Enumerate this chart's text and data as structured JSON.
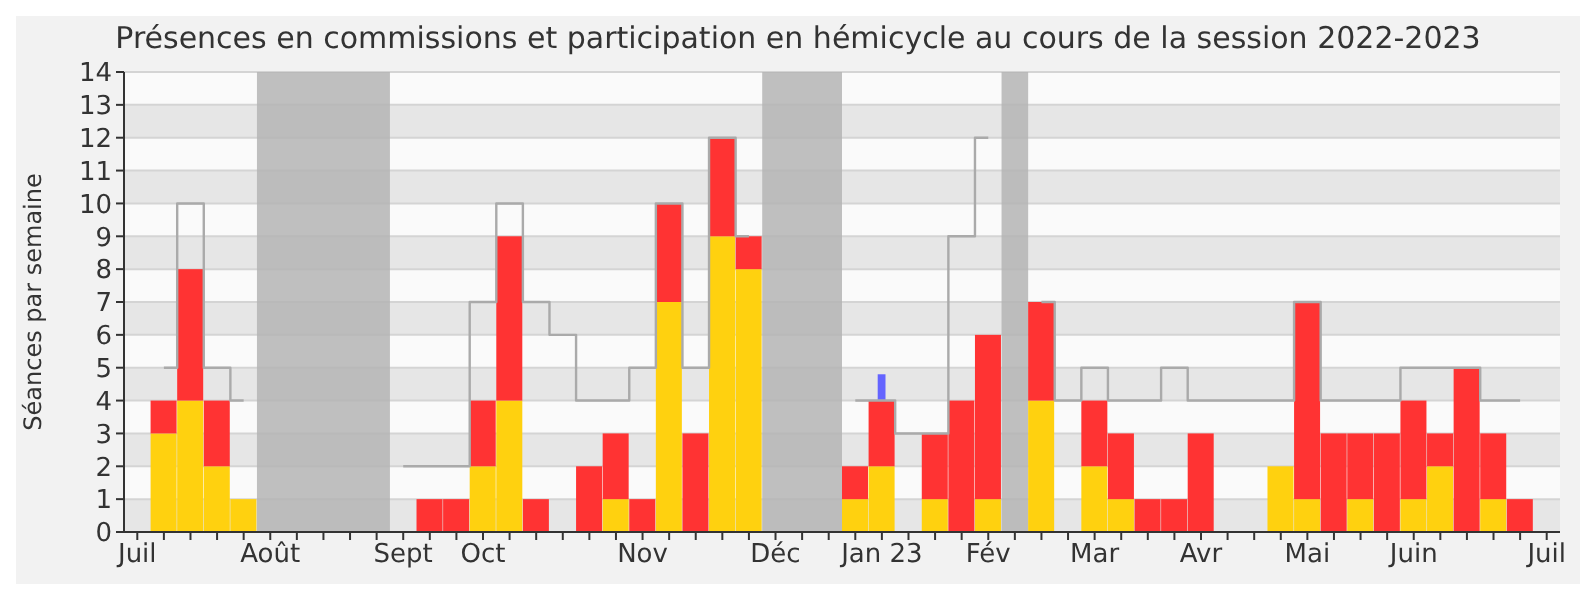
{
  "chart_data": {
    "type": "bar",
    "title": "Présences en commissions et participation en hémicycle au cours de la session 2022-2023",
    "ylabel": "Séances par semaine",
    "categories": [
      "Juil",
      null,
      null,
      null,
      null,
      "Août",
      null,
      null,
      null,
      null,
      "Sept",
      null,
      null,
      "Oct",
      null,
      null,
      null,
      null,
      null,
      "Nov",
      null,
      null,
      null,
      null,
      "Déc",
      null,
      null,
      null,
      "Jan 23",
      null,
      null,
      null,
      "Fév",
      null,
      null,
      null,
      "Mar",
      null,
      null,
      null,
      "Avr",
      null,
      null,
      null,
      "Mai",
      null,
      null,
      null,
      "Juin",
      null,
      null,
      null,
      null,
      "Juil"
    ],
    "ylim": [
      0,
      14
    ],
    "yticks": [
      0,
      1,
      2,
      3,
      4,
      5,
      6,
      7,
      8,
      9,
      10,
      11,
      12,
      13,
      14
    ],
    "grid": "y",
    "stacked": true,
    "series": [
      {
        "type": "step",
        "color": "#aaaaaa",
        "values": [
          null,
          5,
          10,
          5,
          4,
          null,
          null,
          null,
          null,
          null,
          2,
          2,
          2,
          7,
          10,
          7,
          6,
          4,
          4,
          5,
          10,
          5,
          12,
          9,
          null,
          null,
          null,
          4,
          4,
          3,
          3,
          9,
          12,
          null,
          7,
          4,
          5,
          4,
          4,
          5,
          4,
          4,
          4,
          4,
          7,
          4,
          4,
          4,
          5,
          5,
          5,
          4,
          4,
          null
        ]
      },
      {
        "color": "#ffd10f",
        "values": [
          null,
          3,
          4,
          2,
          1,
          null,
          null,
          null,
          null,
          null,
          0,
          0,
          0,
          2,
          4,
          0,
          0,
          0,
          1,
          0,
          7,
          0,
          9,
          8,
          null,
          null,
          null,
          1,
          2,
          0,
          1,
          0,
          1,
          null,
          4,
          0,
          2,
          1,
          0,
          0,
          0,
          0,
          0,
          2,
          1,
          0,
          1,
          0,
          1,
          2,
          0,
          1,
          0,
          null
        ]
      },
      {
        "color": "#ff3333",
        "values": [
          null,
          1,
          4,
          2,
          0,
          null,
          null,
          null,
          null,
          null,
          0,
          1,
          1,
          2,
          5,
          1,
          0,
          2,
          2,
          1,
          3,
          3,
          3,
          1,
          null,
          null,
          null,
          1,
          2,
          0,
          2,
          4,
          5,
          null,
          3,
          0,
          2,
          2,
          1,
          1,
          3,
          0,
          0,
          0,
          6,
          3,
          2,
          3,
          3,
          1,
          5,
          2,
          1,
          null
        ]
      },
      {
        "color": "#6464ff",
        "values": [
          null,
          null,
          null,
          null,
          null,
          null,
          null,
          null,
          null,
          null,
          null,
          null,
          null,
          null,
          null,
          null,
          null,
          null,
          null,
          null,
          null,
          null,
          null,
          null,
          null,
          null,
          null,
          null,
          0.8,
          null,
          null,
          null,
          null,
          null,
          null,
          null,
          null,
          null,
          null,
          null,
          null,
          null,
          null,
          null,
          null,
          null,
          null,
          null,
          null,
          null,
          null,
          null,
          null,
          null
        ]
      }
    ]
  }
}
